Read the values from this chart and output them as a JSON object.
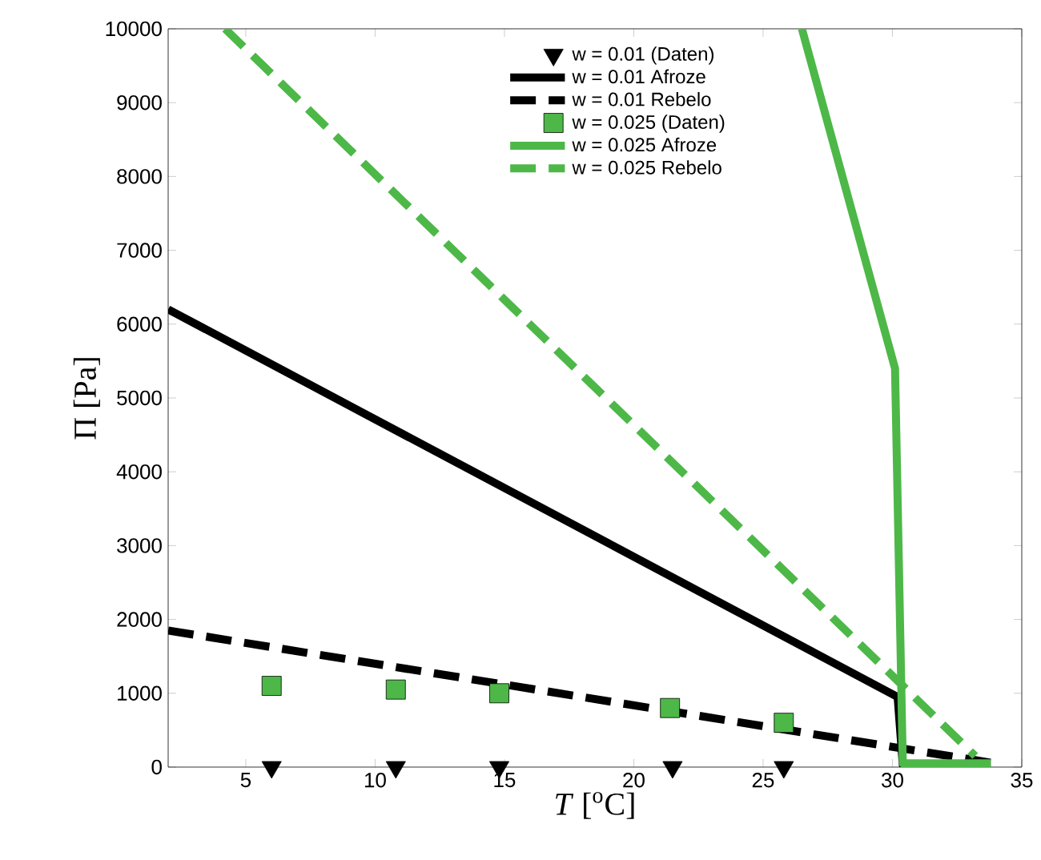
{
  "chart_data": {
    "type": "line",
    "xlabel": "*T* [$^{o}$C]",
    "ylabel": "Π [Pa]",
    "xlim": [
      2,
      35
    ],
    "ylim": [
      0,
      10000
    ],
    "xticks": [
      5,
      10,
      15,
      20,
      25,
      30,
      35
    ],
    "yticks": [
      0,
      1000,
      2000,
      3000,
      4000,
      5000,
      6000,
      7000,
      8000,
      9000,
      10000
    ],
    "grid": false,
    "legend": "top right",
    "series": [
      {
        "name": "w = 0.01 (Daten)",
        "type": "scatter",
        "marker": "triangle",
        "color": "#000000",
        "x": [
          6,
          10.8,
          14.8,
          21.5,
          25.8
        ],
        "values": [
          0,
          0,
          0,
          0,
          0
        ]
      },
      {
        "name": "w = 0.01 Afroze",
        "type": "line",
        "line_style": "solid",
        "color": "#000000",
        "x": [
          2,
          30.2,
          30.4,
          33.8
        ],
        "values": [
          6200,
          950,
          30,
          30
        ]
      },
      {
        "name": "w = 0.01 Rebelo",
        "type": "line",
        "line_style": "dashed",
        "color": "#000000",
        "x": [
          2,
          33.8
        ],
        "values": [
          1850,
          60
        ]
      },
      {
        "name": "w = 0.025 (Daten)",
        "type": "scatter",
        "marker": "square",
        "color": "#4db848",
        "x": [
          6,
          10.8,
          14.8,
          21.4,
          25.8
        ],
        "values": [
          1100,
          1050,
          1000,
          800,
          600
        ]
      },
      {
        "name": "w = 0.025 Afroze",
        "type": "line",
        "line_style": "solid",
        "color": "#4db848",
        "x": [
          26.5,
          30.1,
          30.4,
          33.8
        ],
        "values": [
          10000,
          5400,
          50,
          50
        ]
      },
      {
        "name": "w = 0.025 Rebelo",
        "type": "line",
        "line_style": "dashed",
        "color": "#4db848",
        "x": [
          4.2,
          33.2
        ],
        "values": [
          10000,
          150
        ]
      }
    ]
  }
}
